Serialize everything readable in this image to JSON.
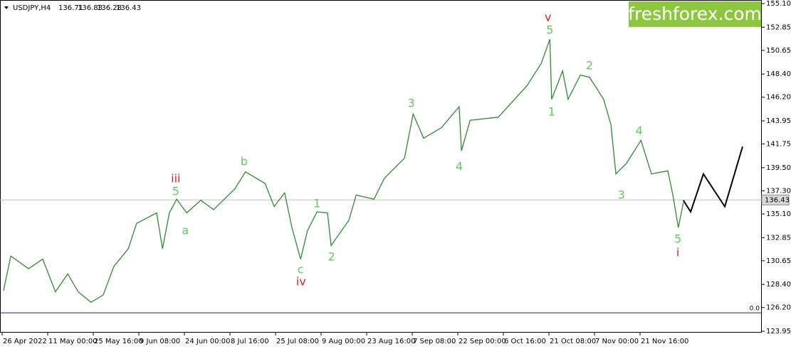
{
  "chart_data": {
    "type": "line",
    "symbol": "USDJPY,H4",
    "ohlc": [
      "136.71",
      "136.83",
      "136.28",
      "136.43"
    ],
    "logo": "freshforex.com",
    "xlim": [
      0,
      16.66
    ],
    "xticks": [
      {
        "value": 0,
        "label": "26 Apr 2022"
      },
      {
        "value": 1,
        "label": "11 May 00:00"
      },
      {
        "value": 2,
        "label": "25 May 16:00"
      },
      {
        "value": 3,
        "label": "9 Jun 08:00"
      },
      {
        "value": 4,
        "label": "24 Jun 00:00"
      },
      {
        "value": 5,
        "label": "8 Jul 16:00"
      },
      {
        "value": 6,
        "label": "25 Jul 08:00"
      },
      {
        "value": 7,
        "label": "9 Aug 00:00"
      },
      {
        "value": 8,
        "label": "23 Aug 16:00"
      },
      {
        "value": 9,
        "label": "7 Sep 08:00"
      },
      {
        "value": 10,
        "label": "22 Sep 00:00"
      },
      {
        "value": 11,
        "label": "6 Oct 16:00"
      },
      {
        "value": 12,
        "label": "21 Oct 08:00"
      },
      {
        "value": 13,
        "label": "7 Nov 00:00"
      },
      {
        "value": 14,
        "label": "21 Nov 16:00"
      }
    ],
    "ylim": [
      123.95,
      155.1
    ],
    "yticks": [
      {
        "value": 155.1,
        "label": "155.10"
      },
      152.85,
      150.65,
      {
        "value": 148.4,
        "label": "148.40"
      },
      {
        "value": 146.2,
        "label": "146.20"
      },
      143.95,
      141.75,
      {
        "value": 139.5,
        "label": "139.50"
      },
      {
        "value": 137.3,
        "label": "137.30"
      },
      {
        "value": 135.1,
        "label": "135.10"
      },
      132.85,
      130.65,
      {
        "value": 128.4,
        "label": "128.40"
      },
      {
        "value": 126.2,
        "label": "126.20"
      },
      123.95
    ],
    "current_price": {
      "value": 136.43,
      "label": "136.43"
    },
    "zero_level": {
      "value": 125.7,
      "label": "0.0"
    },
    "series": [
      {
        "color": "#2e8b2e",
        "x": [
          0.03,
          0.19,
          0.58,
          0.89,
          1.17,
          1.44,
          1.67,
          1.95,
          2.22,
          2.45,
          2.77,
          2.95,
          3.39,
          3.52,
          3.67,
          3.83,
          4.05,
          4.36,
          4.64,
          5.11,
          5.34,
          5.77,
          5.97,
          6.2,
          6.36,
          6.55,
          6.7,
          6.91,
          7.14,
          7.22,
          7.61,
          7.77,
          8.16,
          8.39,
          8.83,
          9.02,
          9.25,
          9.64,
          10.03,
          10.08,
          10.27,
          10.89,
          11.52,
          11.83,
          12.02,
          12.06,
          12.3,
          12.42,
          12.69,
          12.89,
          13.2,
          13.36,
          13.47,
          13.7,
          14.02,
          14.25,
          14.61,
          14.72,
          14.84,
          14.95
        ],
        "values": [
          127.8,
          131.1,
          129.9,
          130.8,
          127.7,
          129.4,
          127.7,
          126.7,
          127.4,
          130.1,
          131.8,
          134.2,
          135.2,
          131.8,
          135.2,
          136.5,
          135.2,
          136.4,
          135.5,
          137.5,
          139.1,
          138.0,
          135.8,
          137.1,
          133.8,
          130.8,
          133.5,
          135.3,
          135.2,
          132.1,
          134.5,
          136.9,
          136.5,
          138.5,
          140.4,
          144.6,
          142.3,
          143.3,
          145.3,
          141.1,
          144.0,
          144.3,
          147.3,
          149.4,
          151.7,
          146.0,
          148.7,
          146.0,
          148.3,
          148.1,
          146.0,
          143.6,
          138.9,
          139.9,
          142.1,
          138.9,
          139.2,
          136.9,
          133.8,
          136.2
        ]
      },
      {
        "color": "#000000",
        "x": [
          14.95,
          15.11,
          15.39,
          15.86,
          16.25
        ],
        "values": [
          136.4,
          135.3,
          138.9,
          135.8,
          141.5
        ]
      }
    ],
    "annotations": [
      {
        "text": "v",
        "color": "#e02020",
        "x": 11.98,
        "y": 153.75
      },
      {
        "text": "5",
        "color": "#5ccc5c",
        "x": 12.02,
        "y": 152.53
      },
      {
        "text": "1",
        "color": "#5ccc5c",
        "x": 12.06,
        "y": 144.76
      },
      {
        "text": "2",
        "color": "#5ccc5c",
        "x": 12.89,
        "y": 149.15
      },
      {
        "text": "3",
        "color": "#5ccc5c",
        "x": 8.98,
        "y": 145.57
      },
      {
        "text": "4",
        "color": "#5ccc5c",
        "x": 10.03,
        "y": 139.56
      },
      {
        "text": "iii",
        "color": "#e02020",
        "x": 3.81,
        "y": 138.41
      },
      {
        "text": "5",
        "color": "#5ccc5c",
        "x": 3.81,
        "y": 137.19
      },
      {
        "text": "a",
        "color": "#5ccc5c",
        "x": 4.02,
        "y": 133.48
      },
      {
        "text": "b",
        "color": "#5ccc5c",
        "x": 5.31,
        "y": 140.03
      },
      {
        "text": "1",
        "color": "#5ccc5c",
        "x": 6.91,
        "y": 136.05
      },
      {
        "text": "2",
        "color": "#5ccc5c",
        "x": 7.23,
        "y": 130.98
      },
      {
        "text": "c",
        "color": "#5ccc5c",
        "x": 6.55,
        "y": 129.76
      },
      {
        "text": "iv",
        "color": "#e02020",
        "x": 6.56,
        "y": 128.61
      },
      {
        "text": "3",
        "color": "#5ccc5c",
        "x": 13.59,
        "y": 136.86
      },
      {
        "text": "4",
        "color": "#5ccc5c",
        "x": 13.98,
        "y": 142.94
      },
      {
        "text": "5",
        "color": "#5ccc5c",
        "x": 14.83,
        "y": 132.67
      },
      {
        "text": "i",
        "color": "#e02020",
        "x": 14.83,
        "y": 131.38
      }
    ]
  }
}
